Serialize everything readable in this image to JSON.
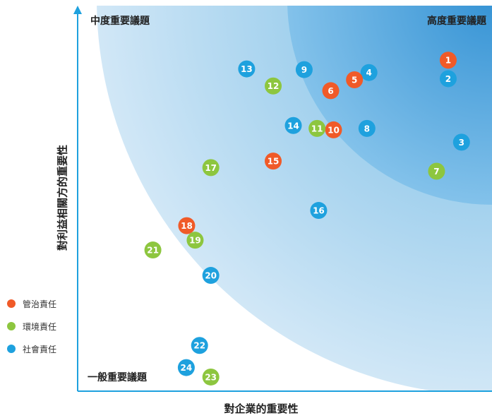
{
  "chart_data": {
    "type": "scatter",
    "xlabel": "對企業的重要性",
    "ylabel": "對利益相關方的重要性",
    "zones": {
      "high": "高度重要議題",
      "medium": "中度重要議題",
      "general": "一般重要議題"
    },
    "legend": [
      {
        "key": "governance",
        "label": "管治責任",
        "color": "#f05a28"
      },
      {
        "key": "environment",
        "label": "環境責任",
        "color": "#8dc63f"
      },
      {
        "key": "social",
        "label": "社會責任",
        "color": "#1ea1de"
      }
    ],
    "xlim": [
      0,
      100
    ],
    "ylim": [
      0,
      100
    ],
    "points": [
      {
        "id": "1",
        "category": "governance",
        "x": 92.1,
        "y": 91.2
      },
      {
        "id": "2",
        "category": "social",
        "x": 92.1,
        "y": 86.1
      },
      {
        "id": "3",
        "category": "social",
        "x": 95.4,
        "y": 68.6
      },
      {
        "id": "4",
        "category": "social",
        "x": 72.4,
        "y": 87.8
      },
      {
        "id": "5",
        "category": "governance",
        "x": 68.8,
        "y": 85.8
      },
      {
        "id": "6",
        "category": "governance",
        "x": 62.9,
        "y": 82.8
      },
      {
        "id": "7",
        "category": "environment",
        "x": 89.2,
        "y": 60.6
      },
      {
        "id": "8",
        "category": "social",
        "x": 71.9,
        "y": 72.4
      },
      {
        "id": "9",
        "category": "social",
        "x": 56.3,
        "y": 88.6
      },
      {
        "id": "10",
        "category": "governance",
        "x": 63.6,
        "y": 72.0
      },
      {
        "id": "11",
        "category": "environment",
        "x": 59.5,
        "y": 72.4
      },
      {
        "id": "12",
        "category": "environment",
        "x": 48.6,
        "y": 84.1
      },
      {
        "id": "13",
        "category": "social",
        "x": 42.0,
        "y": 88.8
      },
      {
        "id": "14",
        "category": "social",
        "x": 53.6,
        "y": 73.2
      },
      {
        "id": "15",
        "category": "governance",
        "x": 48.6,
        "y": 63.4
      },
      {
        "id": "16",
        "category": "social",
        "x": 59.9,
        "y": 49.8
      },
      {
        "id": "17",
        "category": "environment",
        "x": 33.1,
        "y": 61.6
      },
      {
        "id": "18",
        "category": "governance",
        "x": 27.1,
        "y": 45.6
      },
      {
        "id": "19",
        "category": "environment",
        "x": 29.2,
        "y": 41.6
      },
      {
        "id": "20",
        "category": "social",
        "x": 33.1,
        "y": 31.9
      },
      {
        "id": "21",
        "category": "environment",
        "x": 18.7,
        "y": 38.9
      },
      {
        "id": "22",
        "category": "social",
        "x": 30.3,
        "y": 12.6
      },
      {
        "id": "23",
        "category": "environment",
        "x": 33.1,
        "y": 3.9
      },
      {
        "id": "24",
        "category": "social",
        "x": 27.0,
        "y": 6.5
      }
    ]
  }
}
